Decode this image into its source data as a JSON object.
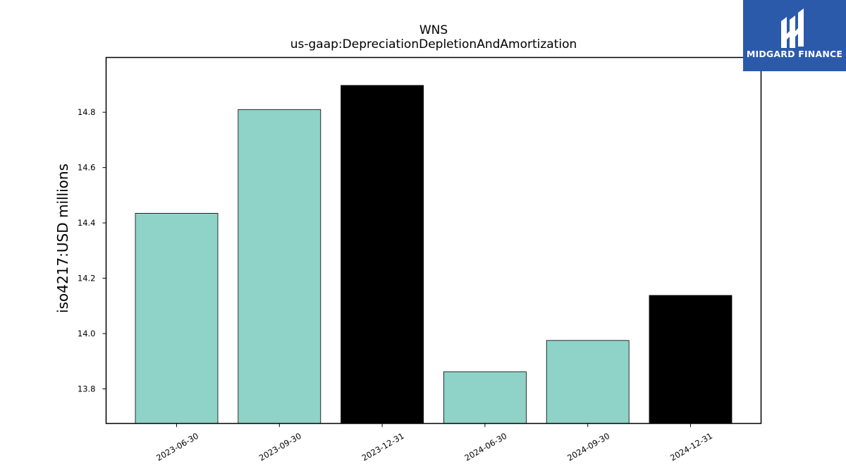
{
  "brand": {
    "name": "MIDGARD FINANCE",
    "background": "#2b5aab",
    "text_color": "#ffffff"
  },
  "chart_data": {
    "type": "bar",
    "title": "WNS",
    "subtitle": "us-gaap:DepreciationDepletionAndAmortization",
    "xlabel": "",
    "ylabel": "iso4217:USD  millions",
    "categories": [
      "2023-06-30",
      "2023-09-30",
      "2023-12-31",
      "2024-06-30",
      "2024-09-30",
      "2024-12-31"
    ],
    "values": [
      14.435,
      14.81,
      14.897,
      13.862,
      13.975,
      14.138
    ],
    "bar_colors": [
      "#8fd3c8",
      "#8fd3c8",
      "#000000",
      "#8fd3c8",
      "#8fd3c8",
      "#000000"
    ],
    "ylim": [
      13.675,
      14.998
    ],
    "yticks": [
      13.8,
      14.0,
      14.2,
      14.4,
      14.6,
      14.8
    ],
    "ytick_labels": [
      "13.8",
      "14.0",
      "14.2",
      "14.4",
      "14.6",
      "14.8"
    ],
    "grid": false,
    "legend": "none"
  }
}
